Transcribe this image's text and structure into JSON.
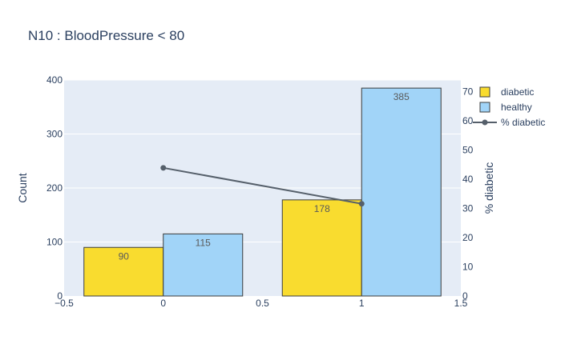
{
  "chart_data": {
    "type": "bar",
    "title": "N10 : BloodPressure < 80",
    "xlabel": "",
    "ylabel": "Count",
    "y2label": "% diabetic",
    "x_ticks": [
      "−0.5",
      "0",
      "0.5",
      "1",
      "1.5"
    ],
    "x_tick_values": [
      -0.5,
      0,
      0.5,
      1,
      1.5
    ],
    "y_ticks": [
      "0",
      "100",
      "200",
      "300",
      "400"
    ],
    "y_tick_values": [
      0,
      100,
      200,
      300,
      400
    ],
    "y2_ticks": [
      "0",
      "10",
      "20",
      "30",
      "40",
      "50",
      "60",
      "70"
    ],
    "y2_tick_values": [
      0,
      10,
      20,
      30,
      40,
      50,
      60,
      70
    ],
    "xlim": [
      -0.5,
      1.5
    ],
    "ylim": [
      0,
      400
    ],
    "y2lim": [
      0,
      74
    ],
    "grid": true,
    "legend_position": "top-right",
    "categories": [
      0,
      1
    ],
    "series": [
      {
        "name": "diabetic",
        "kind": "bar",
        "values": [
          90,
          178
        ],
        "labels": [
          "90",
          "178"
        ],
        "color": "#f9dc2f"
      },
      {
        "name": "healthy",
        "kind": "bar",
        "values": [
          115,
          385
        ],
        "labels": [
          "115",
          "385"
        ],
        "color": "#a1d4f8"
      },
      {
        "name": "% diabetic",
        "kind": "line",
        "axis": "y2",
        "x": [
          0,
          1
        ],
        "values": [
          43.9,
          31.6
        ],
        "color": "#555f6a"
      }
    ]
  }
}
